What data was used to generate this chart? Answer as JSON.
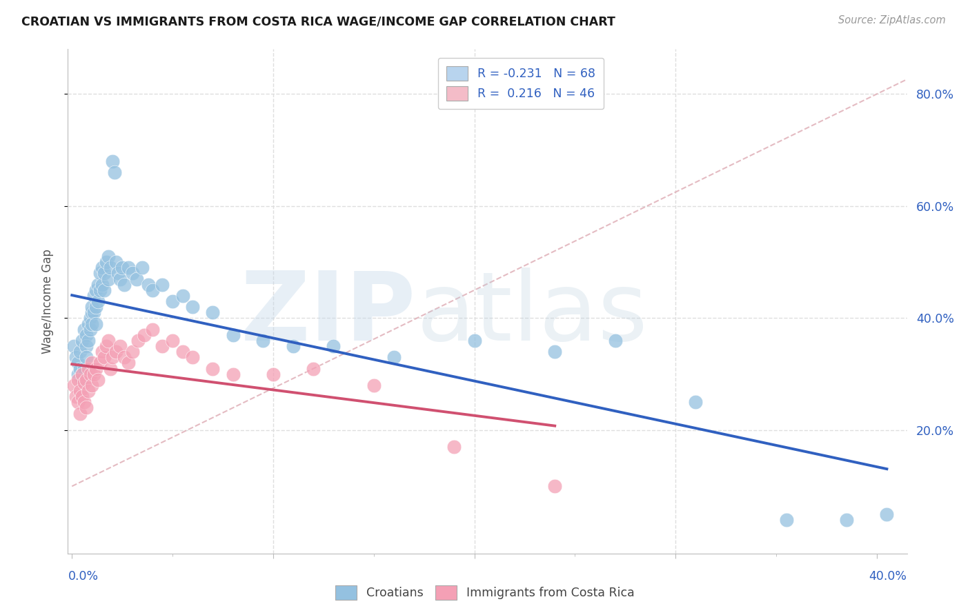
{
  "title": "CROATIAN VS IMMIGRANTS FROM COSTA RICA WAGE/INCOME GAP CORRELATION CHART",
  "source": "Source: ZipAtlas.com",
  "ylabel": "Wage/Income Gap",
  "ytick_labels": [
    "20.0%",
    "40.0%",
    "60.0%",
    "80.0%"
  ],
  "ytick_values": [
    0.2,
    0.4,
    0.6,
    0.8
  ],
  "xmin": -0.002,
  "xmax": 0.415,
  "ymin": -0.02,
  "ymax": 0.88,
  "croatian_color": "#94c1e0",
  "costarica_color": "#f4a0b5",
  "trend_croatian_color": "#3060c0",
  "trend_costarica_color": "#d05070",
  "trend_dashed_color": "#e0b0b8",
  "grid_color": "#dedede",
  "background_color": "#ffffff",
  "legend_patch_blue": "#b8d4ee",
  "legend_patch_pink": "#f4bcc8",
  "legend_text_color": "#3060c0",
  "croatian_x": [
    0.001,
    0.002,
    0.003,
    0.003,
    0.004,
    0.004,
    0.005,
    0.005,
    0.005,
    0.006,
    0.006,
    0.007,
    0.007,
    0.007,
    0.008,
    0.008,
    0.009,
    0.009,
    0.01,
    0.01,
    0.01,
    0.011,
    0.011,
    0.012,
    0.012,
    0.012,
    0.013,
    0.013,
    0.014,
    0.014,
    0.015,
    0.015,
    0.016,
    0.016,
    0.017,
    0.018,
    0.018,
    0.019,
    0.02,
    0.021,
    0.022,
    0.023,
    0.024,
    0.025,
    0.026,
    0.028,
    0.03,
    0.032,
    0.035,
    0.038,
    0.04,
    0.045,
    0.05,
    0.055,
    0.06,
    0.07,
    0.08,
    0.095,
    0.11,
    0.13,
    0.16,
    0.2,
    0.24,
    0.27,
    0.31,
    0.355,
    0.385,
    0.405
  ],
  "croatian_y": [
    0.35,
    0.33,
    0.32,
    0.3,
    0.34,
    0.31,
    0.36,
    0.3,
    0.29,
    0.38,
    0.31,
    0.37,
    0.35,
    0.33,
    0.39,
    0.36,
    0.4,
    0.38,
    0.41,
    0.42,
    0.39,
    0.44,
    0.41,
    0.45,
    0.42,
    0.39,
    0.46,
    0.43,
    0.48,
    0.45,
    0.49,
    0.46,
    0.48,
    0.45,
    0.5,
    0.51,
    0.47,
    0.49,
    0.68,
    0.66,
    0.5,
    0.48,
    0.47,
    0.49,
    0.46,
    0.49,
    0.48,
    0.47,
    0.49,
    0.46,
    0.45,
    0.46,
    0.43,
    0.44,
    0.42,
    0.41,
    0.37,
    0.36,
    0.35,
    0.35,
    0.33,
    0.36,
    0.34,
    0.36,
    0.25,
    0.04,
    0.04,
    0.05
  ],
  "costarica_x": [
    0.001,
    0.002,
    0.003,
    0.003,
    0.004,
    0.004,
    0.005,
    0.005,
    0.006,
    0.006,
    0.007,
    0.007,
    0.008,
    0.008,
    0.009,
    0.01,
    0.01,
    0.011,
    0.012,
    0.013,
    0.014,
    0.015,
    0.016,
    0.017,
    0.018,
    0.019,
    0.02,
    0.022,
    0.024,
    0.026,
    0.028,
    0.03,
    0.033,
    0.036,
    0.04,
    0.045,
    0.05,
    0.055,
    0.06,
    0.07,
    0.08,
    0.1,
    0.12,
    0.15,
    0.19,
    0.24
  ],
  "costarica_y": [
    0.28,
    0.26,
    0.29,
    0.25,
    0.27,
    0.23,
    0.3,
    0.26,
    0.285,
    0.25,
    0.24,
    0.29,
    0.31,
    0.27,
    0.3,
    0.32,
    0.28,
    0.3,
    0.31,
    0.29,
    0.32,
    0.34,
    0.33,
    0.35,
    0.36,
    0.31,
    0.33,
    0.34,
    0.35,
    0.33,
    0.32,
    0.34,
    0.36,
    0.37,
    0.38,
    0.35,
    0.36,
    0.34,
    0.33,
    0.31,
    0.3,
    0.3,
    0.31,
    0.28,
    0.17,
    0.1
  ]
}
